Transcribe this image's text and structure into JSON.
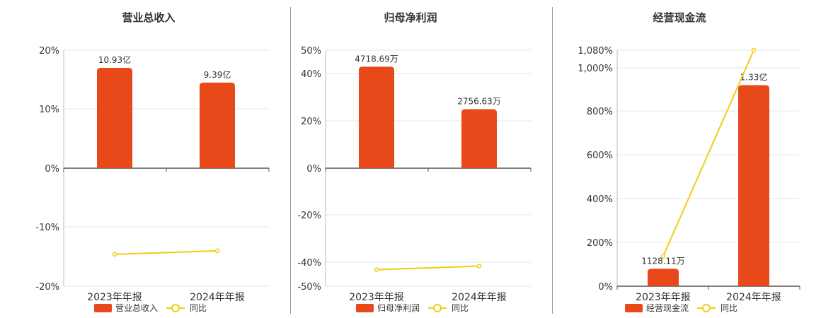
{
  "colors": {
    "bar": "#e8491b",
    "line": "#f2cd13",
    "grid": "#e6e6e6",
    "axis": "#555555",
    "text": "#333333"
  },
  "chart_data": [
    {
      "type": "bar",
      "title": "营业总收入",
      "categories": [
        "2023年年报",
        "2024年年报"
      ],
      "bar_series": {
        "name": "营业总收入",
        "values": [
          17.0,
          14.5
        ],
        "labels": [
          "10.93亿",
          "9.39亿"
        ]
      },
      "line_series": {
        "name": "同比",
        "values": [
          -14.6,
          -14.0
        ]
      },
      "yticks": [
        "20%",
        "10%",
        "0%",
        "-10%",
        "-20%"
      ],
      "ylim": [
        -20,
        20
      ],
      "legend": "bottom"
    },
    {
      "type": "bar",
      "title": "归母净利润",
      "categories": [
        "2023年年报",
        "2024年年报"
      ],
      "bar_series": {
        "name": "归母净利润",
        "values": [
          43.0,
          25.0
        ],
        "labels": [
          "4718.69万",
          "2756.63万"
        ]
      },
      "line_series": {
        "name": "同比",
        "values": [
          -43.0,
          -41.5
        ]
      },
      "yticks": [
        "50%",
        "40%",
        "20%",
        "0%",
        "-20%",
        "-40%",
        "-50%"
      ],
      "ylim": [
        -50,
        50
      ],
      "legend": "bottom"
    },
    {
      "type": "bar",
      "title": "经营现金流",
      "categories": [
        "2023年年报",
        "2024年年报"
      ],
      "bar_series": {
        "name": "经营现金流",
        "values": [
          80,
          920
        ],
        "labels": [
          "1128.11万",
          "1.33亿"
        ]
      },
      "line_series": {
        "name": "同比",
        "values": [
          137,
          1080
        ]
      },
      "yticks": [
        "1,080%",
        "1,000%",
        "800%",
        "600%",
        "400%",
        "200%",
        "0%"
      ],
      "ylim": [
        0,
        1080
      ],
      "legend": "bottom"
    }
  ]
}
